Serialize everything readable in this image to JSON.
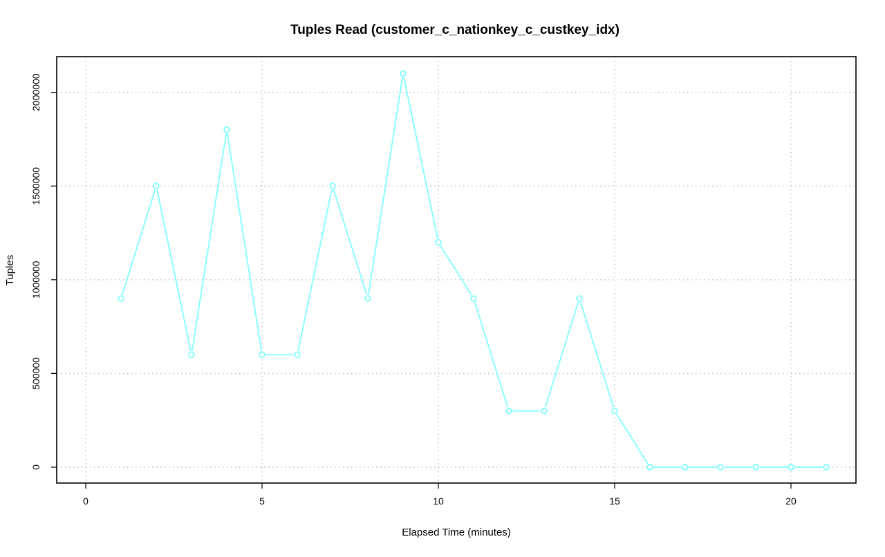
{
  "chart_data": {
    "type": "line",
    "title": "Tuples Read (customer_c_nationkey_c_custkey_idx)",
    "xlabel": "Elapsed Time (minutes)",
    "ylabel": "Tuples",
    "xlim": [
      0,
      21
    ],
    "ylim": [
      0,
      2100000
    ],
    "x_ticks": [
      0,
      5,
      10,
      15,
      20
    ],
    "y_ticks": [
      0,
      500000,
      1000000,
      1500000,
      2000000
    ],
    "grid": true,
    "series_color": "#7fffff",
    "series": [
      {
        "x": [
          1,
          2,
          3,
          4,
          5,
          6,
          7,
          8,
          9,
          10,
          11,
          12,
          13,
          14,
          15,
          16,
          17,
          18,
          19,
          20,
          21
        ],
        "values": [
          900000,
          1500000,
          600000,
          1800000,
          600000,
          600000,
          1500000,
          900000,
          2100000,
          1200000,
          900000,
          300000,
          300000,
          900000,
          300000,
          0,
          0,
          0,
          0,
          0,
          0
        ]
      }
    ]
  }
}
